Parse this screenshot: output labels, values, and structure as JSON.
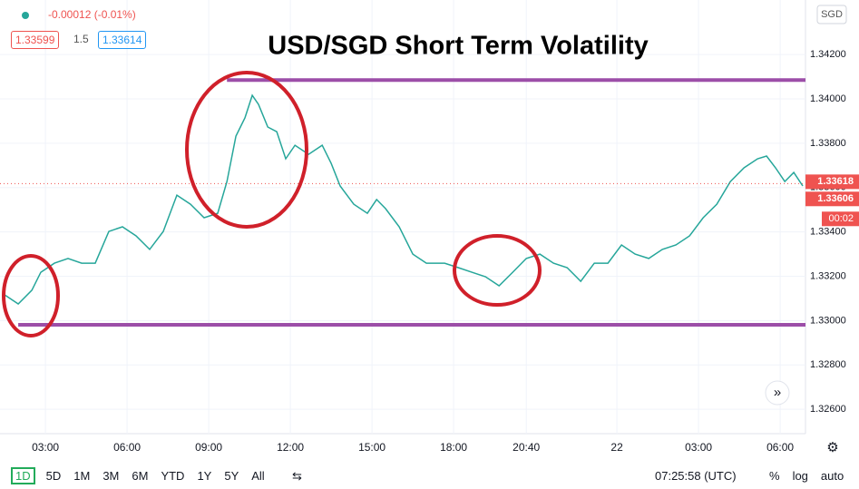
{
  "header": {
    "change": "-0.00012 (-0.01%)",
    "bid": "1.33599",
    "spread": "1.5",
    "ask": "1.33614"
  },
  "chart_data": {
    "type": "line",
    "title": "USD/SGD Short Term Volatility",
    "currency": "SGD",
    "color": "#26a69a",
    "x": [
      1.5,
      2.0,
      2.5,
      2.83,
      3.33,
      3.83,
      4.33,
      4.83,
      5.33,
      5.83,
      6.33,
      6.83,
      7.33,
      7.83,
      8.33,
      8.83,
      9.33,
      9.67,
      10.0,
      10.33,
      10.6,
      10.83,
      11.17,
      11.5,
      11.83,
      12.17,
      12.67,
      13.17,
      13.5,
      13.83,
      14.33,
      14.83,
      15.17,
      15.5,
      16.0,
      16.5,
      17.0,
      17.67,
      18.17,
      18.67,
      19.17,
      19.67,
      20.17,
      20.67,
      21.17,
      21.67,
      22.17,
      22.67,
      23.17,
      23.67,
      24.17,
      24.67,
      25.17,
      25.67,
      26.17,
      26.67,
      27.17,
      27.67,
      28.17,
      28.67,
      29.17,
      29.5,
      29.83,
      30.17,
      30.5,
      30.83
    ],
    "values": [
      1.33116,
      1.33075,
      1.33137,
      1.33218,
      1.33259,
      1.3328,
      1.33259,
      1.33259,
      1.33402,
      1.33423,
      1.33382,
      1.33321,
      1.33402,
      1.33566,
      1.33525,
      1.33464,
      1.33484,
      1.33627,
      1.33832,
      1.33914,
      1.34016,
      1.33975,
      1.33873,
      1.33852,
      1.3373,
      1.33791,
      1.3375,
      1.33791,
      1.33709,
      1.33607,
      1.33525,
      1.33484,
      1.33546,
      1.33505,
      1.33423,
      1.333,
      1.33259,
      1.33259,
      1.33239,
      1.33218,
      1.33198,
      1.33157,
      1.33218,
      1.3328,
      1.333,
      1.33259,
      1.33239,
      1.33177,
      1.33259,
      1.33259,
      1.33341,
      1.333,
      1.3328,
      1.33321,
      1.33341,
      1.33382,
      1.33464,
      1.33525,
      1.33627,
      1.33689,
      1.3373,
      1.33742,
      1.33689,
      1.33627,
      1.33668,
      1.33607
    ],
    "xlim": [
      1.33,
      30.93
    ],
    "xticks": [
      {
        "value": 3,
        "label": "03:00"
      },
      {
        "value": 6,
        "label": "06:00"
      },
      {
        "value": 9,
        "label": "09:00"
      },
      {
        "value": 12,
        "label": "12:00"
      },
      {
        "value": 15,
        "label": "15:00"
      },
      {
        "value": 18,
        "label": "18:00"
      },
      {
        "value": 20.67,
        "label": "20:40"
      },
      {
        "value": 24,
        "label": "22"
      },
      {
        "value": 27,
        "label": "03:00"
      },
      {
        "value": 30,
        "label": "06:00"
      }
    ],
    "ylim": [
      1.3249,
      1.34446
    ],
    "yticks": [
      {
        "value": 1.326,
        "label": "1.32600"
      },
      {
        "value": 1.328,
        "label": "1.32800"
      },
      {
        "value": 1.33,
        "label": "1.33000"
      },
      {
        "value": 1.332,
        "label": "1.33200"
      },
      {
        "value": 1.334,
        "label": "1.33400"
      },
      {
        "value": 1.336,
        "label": "1.33600"
      },
      {
        "value": 1.338,
        "label": "1.33800"
      },
      {
        "value": 1.34,
        "label": "1.34000"
      },
      {
        "value": 1.342,
        "label": "1.34200"
      }
    ],
    "grid": true,
    "levels": [
      {
        "value": 1.34085,
        "x_start": 9.67,
        "color": "#9c4ea8"
      },
      {
        "value": 1.32981,
        "x_start": 2.0,
        "color": "#9c4ea8"
      }
    ],
    "price_tags": [
      {
        "value": 1.33618,
        "label": "1.33618"
      },
      {
        "value": 1.33606,
        "label": "1.33606"
      }
    ],
    "countdown": "00:02"
  },
  "toolbar": {
    "ranges": [
      "1D",
      "5D",
      "1M",
      "3M",
      "6M",
      "YTD",
      "1Y",
      "5Y",
      "All"
    ],
    "clock": "07:25:58 (UTC)",
    "options": [
      "%",
      "log",
      "auto"
    ]
  }
}
